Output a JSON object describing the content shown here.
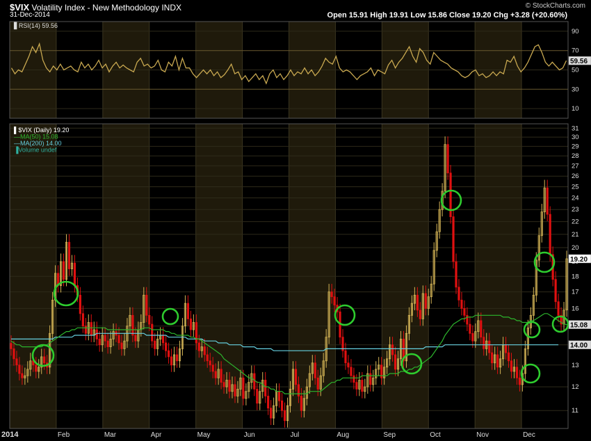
{
  "header": {
    "symbol": "$VIX",
    "name": "Volatility Index - New Methodology",
    "exchange": "INDX",
    "date": "31-Dec-2014",
    "brand": "© StockCharts.com",
    "ohlc": "Open 15.91  High 19.91  Low 15.86  Close 19.20  Chg +3.28 (+20.60%)"
  },
  "chart_data": [
    {
      "type": "line",
      "legend": "RSI(14) 59.56",
      "ylim": [
        0,
        100
      ],
      "yticks": [
        10,
        30,
        50,
        70,
        90
      ],
      "last_label": "59.56",
      "colors": {
        "line": "#c8a850"
      },
      "series": [
        {
          "name": "RSI(14)",
          "values": [
            52,
            46,
            50,
            48,
            56,
            64,
            74,
            68,
            77,
            60,
            52,
            48,
            54,
            50,
            56,
            50,
            52,
            54,
            50,
            48,
            58,
            52,
            56,
            50,
            54,
            60,
            52,
            56,
            48,
            54,
            58,
            52,
            55,
            52,
            50,
            48,
            58,
            62,
            54,
            56,
            52,
            54,
            60,
            50,
            48,
            58,
            54,
            64,
            50,
            62,
            52,
            52,
            46,
            42,
            46,
            50,
            46,
            50,
            44,
            48,
            42,
            45,
            50,
            56,
            46,
            48,
            40,
            44,
            38,
            42,
            46,
            40,
            44,
            36,
            46,
            50,
            42,
            46,
            40,
            44,
            50,
            44,
            48,
            46,
            52,
            46,
            50,
            44,
            48,
            54,
            62,
            58,
            56,
            64,
            52,
            48,
            50,
            48,
            44,
            40,
            44,
            46,
            48,
            52,
            44,
            50,
            48,
            46,
            55,
            60,
            52,
            58,
            62,
            68,
            74,
            64,
            58,
            72,
            68,
            60,
            56,
            68,
            64,
            60,
            58,
            56,
            52,
            50,
            48,
            44,
            42,
            44,
            48,
            50,
            44,
            46,
            42,
            44,
            48,
            44,
            48,
            46,
            60,
            58,
            64,
            54,
            48,
            52,
            58,
            66,
            74,
            76,
            68,
            58,
            54,
            58,
            54,
            50,
            52,
            59.56
          ]
        }
      ]
    },
    {
      "type": "candlestick",
      "legend": [
        "$VIX (Daily) 19.20",
        "MA(50) 15.08",
        "MA(200) 14.00",
        "Volume undef"
      ],
      "x_labels": [
        "2014",
        "Feb",
        "Mar",
        "Apr",
        "May",
        "Jun",
        "Jul",
        "Aug",
        "Sep",
        "Oct",
        "Nov",
        "Dec"
      ],
      "ylim": [
        10.3,
        31.5
      ],
      "yscale": "log",
      "yticks": [
        11,
        12,
        13,
        14,
        15,
        16,
        17,
        18,
        19,
        20,
        21,
        22,
        23,
        24,
        25,
        26,
        27,
        28,
        29,
        30,
        31
      ],
      "price_tags": {
        "close": "19.20",
        "ma50": "15.08",
        "ma200": "14.00"
      },
      "colors": {
        "up": "#d4b456",
        "down": "#e01010",
        "ma50": "#2db52d",
        "ma200": "#66d0e0",
        "circle": "#2ecc2e",
        "band": "#1f1a0b"
      },
      "close": [
        13.8,
        13.3,
        13.0,
        12.6,
        12.4,
        12.5,
        12.8,
        13.2,
        13.0,
        12.7,
        12.9,
        13.4,
        13.1,
        12.9,
        14.6,
        16.5,
        18.2,
        17.4,
        19.0,
        17.8,
        20.4,
        18.5,
        18.9,
        17.4,
        16.8,
        15.7,
        15.0,
        14.6,
        15.2,
        14.5,
        14.8,
        14.3,
        14.0,
        14.5,
        14.2,
        13.9,
        14.3,
        14.7,
        14.5,
        14.1,
        13.8,
        14.2,
        15.0,
        15.6,
        14.5,
        14.2,
        14.8,
        15.2,
        16.8,
        15.6,
        15.1,
        14.2,
        13.8,
        14.3,
        14.5,
        14.1,
        13.7,
        13.4,
        13.0,
        13.5,
        13.2,
        13.8,
        15.0,
        16.3,
        15.4,
        14.8,
        15.2,
        14.1,
        13.7,
        13.9,
        13.5,
        13.2,
        13.0,
        12.7,
        12.4,
        12.8,
        12.2,
        12.0,
        12.3,
        11.8,
        12.1,
        11.6,
        11.9,
        12.4,
        11.5,
        11.8,
        12.2,
        12.6,
        11.9,
        11.3,
        11.8,
        12.3,
        11.6,
        11.1,
        10.7,
        11.2,
        11.8,
        11.4,
        11.0,
        10.6,
        11.2,
        11.9,
        12.8,
        12.1,
        11.6,
        11.0,
        11.5,
        12.0,
        12.6,
        13.1,
        12.4,
        11.9,
        12.5,
        13.2,
        14.4,
        17.0,
        16.7,
        16.2,
        15.8,
        14.4,
        13.7,
        13.1,
        12.9,
        12.5,
        12.2,
        11.9,
        12.3,
        11.8,
        12.0,
        12.6,
        12.1,
        12.4,
        12.8,
        13.0,
        12.4,
        12.9,
        13.3,
        14.0,
        13.5,
        12.8,
        13.3,
        14.3,
        13.2,
        14.6,
        15.6,
        16.3,
        16.8,
        15.9,
        15.4,
        16.9,
        16.0,
        16.7,
        17.5,
        19.8,
        21.2,
        23.0,
        24.6,
        29.2,
        26.3,
        22.4,
        19.0,
        17.3,
        16.5,
        16.0,
        15.6,
        15.1,
        14.6,
        14.2,
        14.7,
        15.3,
        14.4,
        13.8,
        14.2,
        13.6,
        13.1,
        13.5,
        12.9,
        13.3,
        14.0,
        13.6,
        13.2,
        12.7,
        12.9,
        12.4,
        12.1,
        12.6,
        13.8,
        14.9,
        15.6,
        16.8,
        19.1,
        20.9,
        22.8,
        24.9,
        22.6,
        19.5,
        17.8,
        16.4,
        15.6,
        15.1,
        15.91,
        19.2
      ],
      "ma50": [
        14.2,
        14.1,
        14.0,
        14.0,
        13.9,
        13.9,
        13.9,
        13.9,
        13.9,
        13.9,
        13.9,
        13.9,
        14.0,
        14.0,
        14.1,
        14.2,
        14.3,
        14.4,
        14.5,
        14.6,
        14.7,
        14.7,
        14.8,
        14.8,
        14.9,
        14.9,
        14.9,
        14.9,
        14.9,
        14.9,
        14.9,
        14.9,
        14.9,
        14.9,
        14.9,
        14.8,
        14.8,
        14.8,
        14.8,
        14.8,
        14.8,
        14.8,
        14.8,
        14.8,
        14.8,
        14.8,
        14.8,
        14.8,
        14.9,
        14.9,
        14.9,
        14.8,
        14.8,
        14.8,
        14.8,
        14.8,
        14.7,
        14.7,
        14.6,
        14.6,
        14.5,
        14.5,
        14.5,
        14.5,
        14.5,
        14.4,
        14.4,
        14.3,
        14.3,
        14.2,
        14.1,
        14.0,
        13.9,
        13.8,
        13.7,
        13.6,
        13.5,
        13.3,
        13.2,
        13.1,
        13.0,
        12.9,
        12.8,
        12.7,
        12.6,
        12.5,
        12.4,
        12.4,
        12.3,
        12.2,
        12.2,
        12.1,
        12.0,
        12.0,
        11.9,
        11.9,
        11.8,
        11.8,
        11.8,
        11.7,
        11.7,
        11.7,
        11.7,
        11.7,
        11.7,
        11.7,
        11.7,
        11.7,
        11.8,
        11.8,
        11.8,
        11.8,
        11.8,
        11.9,
        12.0,
        12.1,
        12.2,
        12.2,
        12.3,
        12.3,
        12.4,
        12.4,
        12.4,
        12.4,
        12.4,
        12.4,
        12.4,
        12.5,
        12.5,
        12.5,
        12.5,
        12.5,
        12.5,
        12.5,
        12.5,
        12.5,
        12.5,
        12.6,
        12.6,
        12.6,
        12.6,
        12.7,
        12.7,
        12.7,
        12.8,
        12.8,
        12.9,
        12.9,
        13.0,
        13.1,
        13.2,
        13.3,
        13.4,
        13.6,
        13.8,
        14.0,
        14.2,
        14.5,
        14.7,
        14.9,
        15.1,
        15.2,
        15.3,
        15.4,
        15.4,
        15.5,
        15.5,
        15.5,
        15.6,
        15.6,
        15.6,
        15.6,
        15.6,
        15.6,
        15.6,
        15.6,
        15.6,
        15.6,
        15.5,
        15.5,
        15.5,
        15.4,
        15.4,
        15.3,
        15.3,
        15.2,
        15.2,
        15.2,
        15.3,
        15.3,
        15.4,
        15.5,
        15.6,
        15.7,
        15.7,
        15.6,
        15.5,
        15.4,
        15.3,
        15.2,
        15.1,
        15.08,
        15.08
      ],
      "ma200": [
        14.3,
        14.3,
        14.3,
        14.3,
        14.3,
        14.3,
        14.3,
        14.3,
        14.3,
        14.3,
        14.3,
        14.3,
        14.3,
        14.3,
        14.3,
        14.3,
        14.4,
        14.4,
        14.4,
        14.4,
        14.4,
        14.4,
        14.4,
        14.5,
        14.5,
        14.5,
        14.5,
        14.5,
        14.5,
        14.5,
        14.5,
        14.6,
        14.6,
        14.6,
        14.6,
        14.6,
        14.6,
        14.6,
        14.6,
        14.6,
        14.6,
        14.6,
        14.6,
        14.6,
        14.6,
        14.6,
        14.6,
        14.6,
        14.6,
        14.5,
        14.5,
        14.5,
        14.5,
        14.5,
        14.5,
        14.5,
        14.5,
        14.4,
        14.4,
        14.4,
        14.4,
        14.4,
        14.4,
        14.4,
        14.3,
        14.3,
        14.3,
        14.3,
        14.3,
        14.3,
        14.2,
        14.2,
        14.2,
        14.2,
        14.2,
        14.1,
        14.1,
        14.1,
        14.1,
        14.0,
        14.0,
        14.0,
        14.0,
        14.0,
        13.9,
        13.9,
        13.9,
        13.9,
        13.9,
        13.8,
        13.8,
        13.8,
        13.8,
        13.8,
        13.8,
        13.7,
        13.7,
        13.7,
        13.7,
        13.7,
        13.7,
        13.7,
        13.7,
        13.7,
        13.7,
        13.7,
        13.7,
        13.7,
        13.7,
        13.7,
        13.7,
        13.7,
        13.7,
        13.7,
        13.8,
        13.8,
        13.8,
        13.8,
        13.8,
        13.8,
        13.8,
        13.8,
        13.8,
        13.8,
        13.8,
        13.8,
        13.8,
        13.8,
        13.8,
        13.8,
        13.8,
        13.8,
        13.8,
        13.8,
        13.8,
        13.8,
        13.8,
        13.8,
        13.8,
        13.8,
        13.8,
        13.8,
        13.8,
        13.8,
        13.8,
        13.8,
        13.8,
        13.8,
        13.8,
        13.8,
        13.9,
        13.9,
        13.9,
        13.9,
        13.9,
        13.9,
        13.9,
        14.0,
        14.0,
        14.0,
        14.0,
        14.0,
        14.0,
        14.0,
        14.0,
        14.0,
        14.0,
        14.0,
        14.0,
        14.0,
        14.0,
        14.0,
        14.0,
        14.0,
        14.0,
        14.0,
        14.0,
        14.0,
        14.0,
        14.0,
        14.0,
        14.0,
        14.0,
        14.0,
        14.0,
        14.0,
        14.0,
        14.0,
        14.0,
        14.0,
        14.0,
        14.0,
        14.0,
        14.0,
        14.0,
        14.0,
        14.0,
        14.0,
        14.0
      ]
    }
  ]
}
